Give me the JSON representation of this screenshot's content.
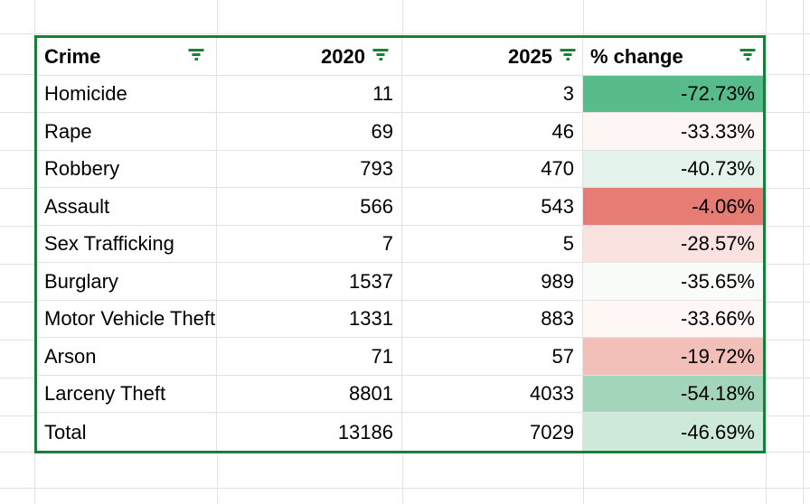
{
  "app": {
    "kind": "spreadsheet-grid"
  },
  "colors": {
    "accent_green_border": "#1a7d3c",
    "filter_icon_green": "#188038",
    "gridline": "#e2e2e2",
    "scale_max_green": "#57bb8a",
    "scale_min_red": "#e67c73"
  },
  "table": {
    "headers": {
      "crime": "Crime",
      "y2020": "2020",
      "y2025": "2025",
      "pct": "% change"
    },
    "rows": [
      {
        "crime": "Homicide",
        "y2020": "11",
        "y2025": "3",
        "pct": "-72.73%",
        "color": "#57bb8a"
      },
      {
        "crime": "Rape",
        "y2020": "69",
        "y2025": "46",
        "pct": "-33.33%",
        "color": "#fef6f4"
      },
      {
        "crime": "Robbery",
        "y2020": "793",
        "y2025": "470",
        "pct": "-40.73%",
        "color": "#e4f3eb"
      },
      {
        "crime": "Assault",
        "y2020": "566",
        "y2025": "543",
        "pct": "-4.06%",
        "color": "#e67c73"
      },
      {
        "crime": "Sex Trafficking",
        "y2020": "7",
        "y2025": "5",
        "pct": "-28.57%",
        "color": "#f9e2df"
      },
      {
        "crime": "Burglary",
        "y2020": "1537",
        "y2025": "989",
        "pct": "-35.65%",
        "color": "#fafcfa"
      },
      {
        "crime": "Motor Vehicle Theft",
        "y2020": "1331",
        "y2025": "883",
        "pct": "-33.66%",
        "color": "#fef7f5"
      },
      {
        "crime": "Arson",
        "y2020": "71",
        "y2025": "57",
        "pct": "-19.72%",
        "color": "#f2bfb9"
      },
      {
        "crime": "Larceny Theft",
        "y2020": "8801",
        "y2025": "4033",
        "pct": "-54.18%",
        "color": "#a2d5ba"
      },
      {
        "crime": "Total",
        "y2020": "13186",
        "y2025": "7029",
        "pct": "-46.69%",
        "color": "#cde9d9"
      }
    ]
  }
}
